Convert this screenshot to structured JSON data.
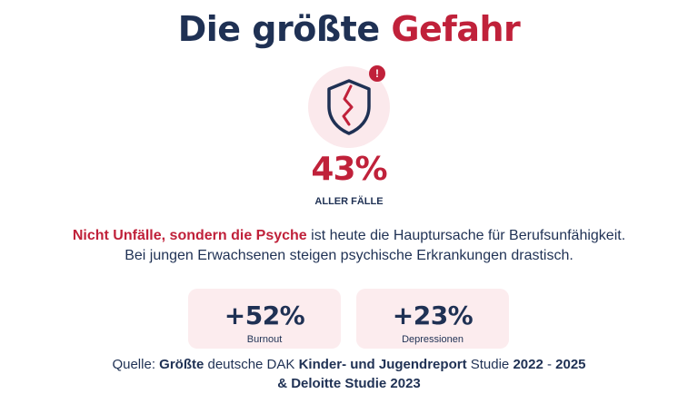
{
  "header": {
    "title_part1": "Die größte",
    "title_part2": "Gefahr"
  },
  "hero": {
    "icon": "broken-shield-icon",
    "alert_icon": "alert-badge-icon",
    "alert_symbol": "!",
    "value": "43%",
    "value_label": "ALLER FÄLLE"
  },
  "description": {
    "highlight": "Nicht Unfälle, sondern die Psyche",
    "rest_line1": " ist heute die Hauptursache für Berufsunfähigkeit.",
    "line2": "Bei jungen Erwachsenen  steigen psychische Erkrankungen drastisch."
  },
  "stats": [
    {
      "value": "+52%",
      "label": "Burnout"
    },
    {
      "value": "+23%",
      "label": "Depressionen"
    }
  ],
  "source": {
    "prefix": "Quelle: ",
    "bold1": "Größte",
    "mid1": " deutsche DAK ",
    "bold2": "Kinder- und Jugendreport",
    "mid2": " Studie ",
    "bold3": "2022",
    "mid3": " - ",
    "bold4": "2025",
    "line2": "& Deloitte Studie 2023"
  },
  "colors": {
    "navy": "#1f3154",
    "red": "#c0213a",
    "pink_bg": "#fcecee"
  }
}
